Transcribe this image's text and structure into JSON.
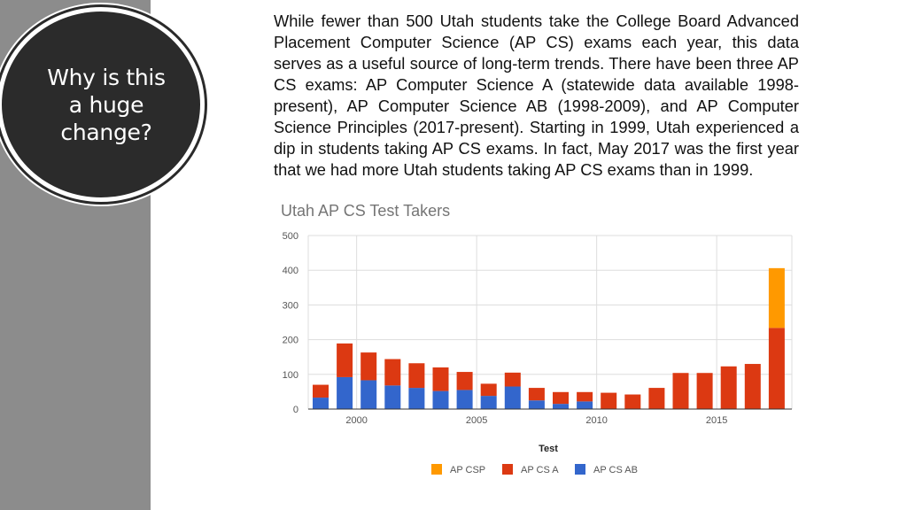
{
  "sidebar": {
    "question": "Why is this a huge change?"
  },
  "paragraph": "While fewer than 500 Utah students take the College Board Advanced Placement Computer Science (AP CS) exams each year, this data serves as a useful source of long-term trends. There have been three AP CS exams: AP Computer Science A (statewide data available 1998-present), AP Computer Science AB (1998-2009), and AP Computer Science Principles (2017-present). Starting in 1999, Utah experienced a dip in students taking AP CS exams. In fact, May 2017 was the first year that we had more Utah students taking AP CS exams than in 1999.",
  "colors": {
    "ap_csp": "#ff9900",
    "ap_cs_a": "#dc3912",
    "ap_cs_ab": "#3366cc",
    "grid": "#dddddd",
    "axis_text": "#555555",
    "title_text": "#757575"
  },
  "chart_data": {
    "type": "bar",
    "stacked": true,
    "title": "Utah AP CS Test Takers",
    "xlabel": "Test",
    "ylabel": "",
    "ylim": [
      0,
      500
    ],
    "yticks": [
      0,
      100,
      200,
      300,
      400,
      500
    ],
    "xticks": [
      2000,
      2005,
      2010,
      2015
    ],
    "grid": true,
    "legend_position": "bottom",
    "categories": [
      1998,
      1999,
      2000,
      2001,
      2002,
      2003,
      2004,
      2005,
      2006,
      2007,
      2008,
      2009,
      2010,
      2011,
      2012,
      2013,
      2014,
      2015,
      2016,
      2017
    ],
    "series": [
      {
        "name": "AP CS AB",
        "values": [
          33,
          92,
          83,
          68,
          61,
          52,
          55,
          38,
          65,
          25,
          15,
          22,
          0,
          0,
          0,
          0,
          0,
          0,
          0,
          0
        ]
      },
      {
        "name": "AP CS A",
        "values": [
          37,
          97,
          80,
          76,
          71,
          68,
          52,
          35,
          40,
          36,
          34,
          27,
          47,
          42,
          61,
          104,
          104,
          123,
          130,
          234
        ]
      },
      {
        "name": "AP CSP",
        "values": [
          0,
          0,
          0,
          0,
          0,
          0,
          0,
          0,
          0,
          0,
          0,
          0,
          0,
          0,
          0,
          0,
          0,
          0,
          0,
          172
        ]
      }
    ],
    "legend": [
      "AP CSP",
      "AP CS A",
      "AP CS AB"
    ]
  }
}
